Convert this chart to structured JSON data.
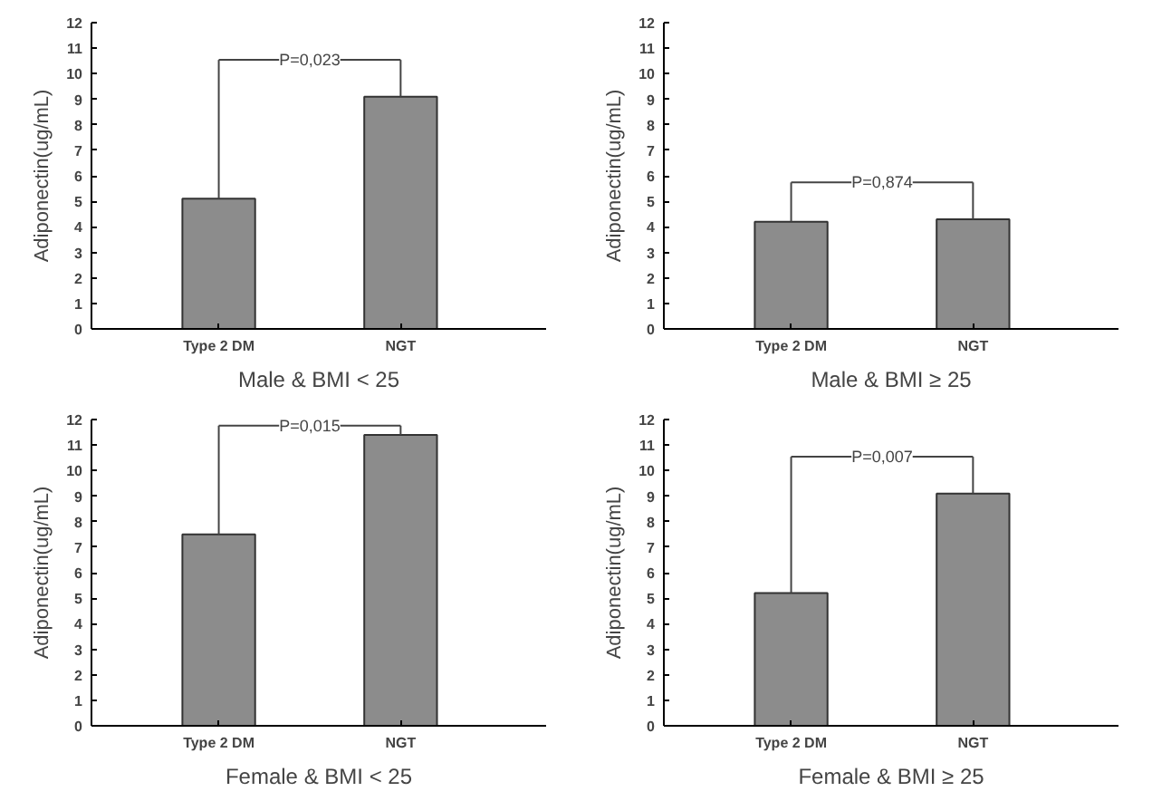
{
  "chart_data": [
    {
      "type": "bar",
      "categories": [
        "Type 2 DM",
        "NGT"
      ],
      "values": [
        5.1,
        9.1
      ],
      "color": "#8c8c8c",
      "xlabel": "Male & BMI < 25",
      "ylabel": "Adiponectin(ug/mL)",
      "ylim": [
        0,
        12
      ],
      "yticks": [
        0,
        1,
        2,
        3,
        4,
        5,
        6,
        7,
        8,
        9,
        10,
        11,
        12
      ],
      "grid": false,
      "annotations": [
        "P=0,023"
      ]
    },
    {
      "type": "bar",
      "categories": [
        "Type 2 DM",
        "NGT"
      ],
      "values": [
        4.2,
        4.3
      ],
      "color": "#8c8c8c",
      "xlabel": "Male & BMI ≥ 25",
      "ylabel": "Adiponectin(ug/mL)",
      "ylim": [
        0,
        12
      ],
      "yticks": [
        0,
        1,
        2,
        3,
        4,
        5,
        6,
        7,
        8,
        9,
        10,
        11,
        12
      ],
      "grid": false,
      "annotations": [
        "P=0,874"
      ]
    },
    {
      "type": "bar",
      "categories": [
        "Type 2 DM",
        "NGT"
      ],
      "values": [
        7.5,
        11.4
      ],
      "color": "#8c8c8c",
      "xlabel": "Female & BMI < 25",
      "ylabel": "Adiponectin(ug/mL)",
      "ylim": [
        0,
        12
      ],
      "yticks": [
        0,
        1,
        2,
        3,
        4,
        5,
        6,
        7,
        8,
        9,
        10,
        11,
        12
      ],
      "grid": false,
      "annotations": [
        "P=0,015"
      ]
    },
    {
      "type": "bar",
      "categories": [
        "Type 2 DM",
        "NGT"
      ],
      "values": [
        5.2,
        9.1
      ],
      "color": "#8c8c8c",
      "xlabel": "Female & BMI ≥ 25",
      "ylabel": "Adiponectin(ug/mL)",
      "ylim": [
        0,
        12
      ],
      "yticks": [
        0,
        1,
        2,
        3,
        4,
        5,
        6,
        7,
        8,
        9,
        10,
        11,
        12
      ],
      "grid": false,
      "annotations": [
        "P=0,007"
      ]
    }
  ]
}
